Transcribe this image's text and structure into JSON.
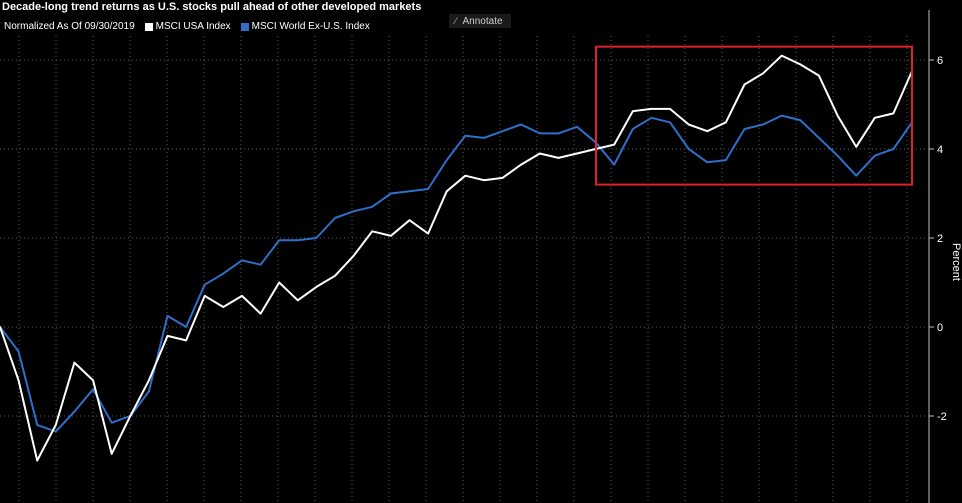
{
  "header": {
    "title": "Decade-long trend returns as U.S. stocks pull ahead of other developed markets",
    "normalized_label": "Normalized As Of 09/30/2019",
    "annotate_label": "Annotate",
    "annotate_icon": "pencil-icon"
  },
  "colors": {
    "background": "#000000",
    "usa": "#ffffff",
    "world": "#2f6fc9",
    "highlight": "#e0202b",
    "grid": "#5a5a5a"
  },
  "chart_data": {
    "type": "line",
    "ylabel": "Percent",
    "ylim": [
      -3.5,
      7
    ],
    "yticks": [
      -2,
      0,
      2,
      4,
      6
    ],
    "grid": true,
    "legend_position": "top-left",
    "series": [
      {
        "name": "MSCI USA Index",
        "color": "#ffffff",
        "values": [
          0,
          -1.2,
          -3.0,
          -2.2,
          -0.8,
          -1.2,
          -2.85,
          -2.0,
          -1.2,
          -0.2,
          -0.3,
          0.7,
          0.45,
          0.7,
          0.3,
          1.0,
          0.6,
          0.9,
          1.15,
          1.6,
          2.15,
          2.05,
          2.4,
          2.1,
          3.05,
          3.4,
          3.3,
          3.35,
          3.65,
          3.9,
          3.8,
          3.9,
          4.0,
          4.1,
          4.85,
          4.9,
          4.9,
          4.55,
          4.4,
          4.6,
          5.45,
          5.7,
          6.1,
          5.9,
          5.65,
          4.75,
          4.05,
          4.7,
          4.8,
          5.75
        ]
      },
      {
        "name": "MSCI World Ex-U.S. Index",
        "color": "#2f6fc9",
        "values": [
          0,
          -0.55,
          -2.2,
          -2.35,
          -1.9,
          -1.4,
          -2.15,
          -2.0,
          -1.45,
          0.25,
          0.0,
          0.95,
          1.2,
          1.5,
          1.4,
          1.95,
          1.95,
          2.0,
          2.45,
          2.6,
          2.7,
          3.0,
          3.05,
          3.1,
          3.75,
          4.3,
          4.25,
          4.4,
          4.55,
          4.35,
          4.35,
          4.5,
          4.15,
          3.65,
          4.45,
          4.7,
          4.6,
          4.0,
          3.7,
          3.75,
          4.45,
          4.55,
          4.75,
          4.65,
          4.25,
          3.85,
          3.4,
          3.85,
          4.0,
          4.6
        ]
      }
    ],
    "highlight_box": {
      "x_start_index": 32,
      "x_end_index": 49,
      "y_min": 3.2,
      "y_max": 6.3
    }
  }
}
